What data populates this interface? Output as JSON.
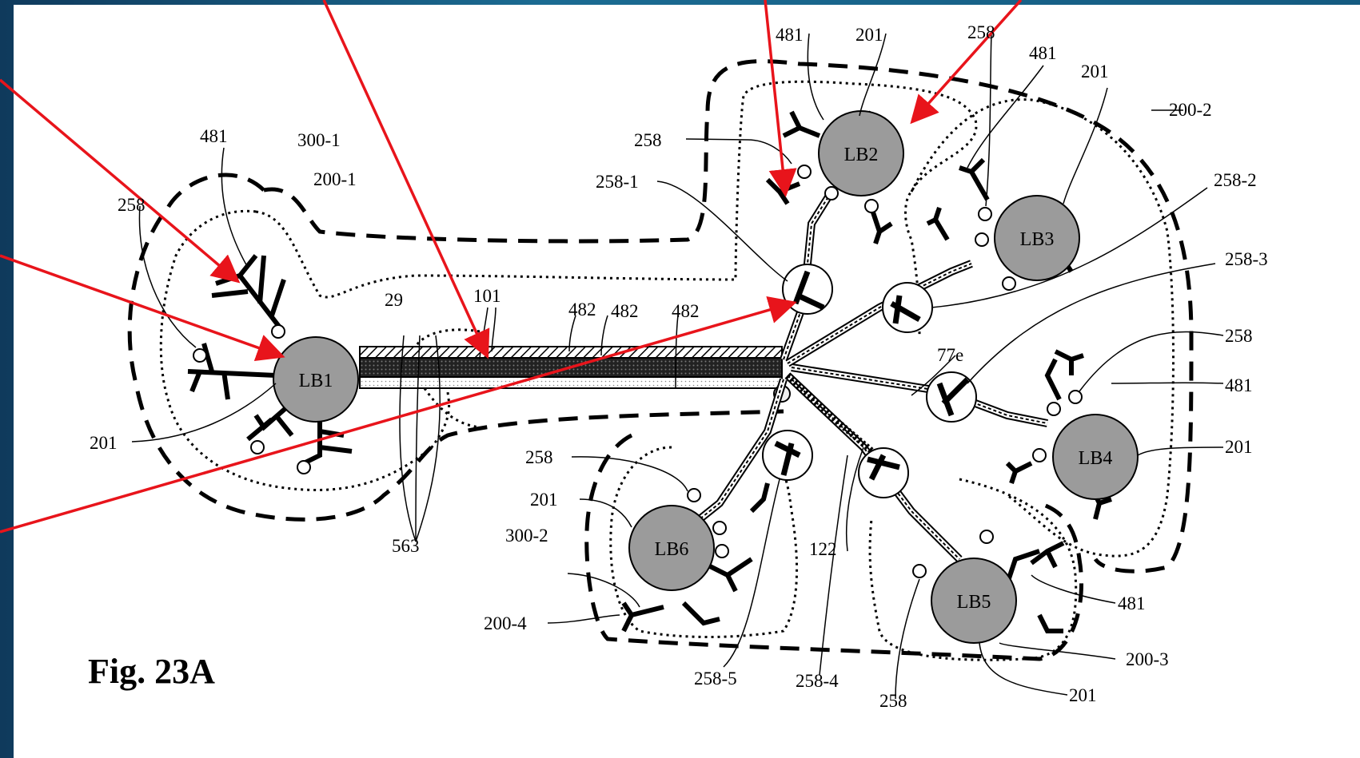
{
  "figure": {
    "caption": "Fig. 23A"
  },
  "nodes": [
    {
      "id": "LB1",
      "label": "LB1"
    },
    {
      "id": "LB2",
      "label": "LB2"
    },
    {
      "id": "LB3",
      "label": "LB3"
    },
    {
      "id": "LB4",
      "label": "LB4"
    },
    {
      "id": "LB5",
      "label": "LB5"
    },
    {
      "id": "LB6",
      "label": "LB6"
    }
  ],
  "labels": {
    "l481": "481",
    "l258": "258",
    "l201": "201",
    "l300_1": "300-1",
    "l300_2": "300-2",
    "l200_1": "200-1",
    "l200_2": "200-2",
    "l200_3": "200-3",
    "l200_4": "200-4",
    "l258_1": "258-1",
    "l258_2": "258-2",
    "l258_3": "258-3",
    "l258_4": "258-4",
    "l258_5": "258-5",
    "l29": "29",
    "l101": "101",
    "l482": "482",
    "l563": "563",
    "l77e": "77e",
    "l122": "122"
  },
  "colors": {
    "annotation_arrow": "#e8141b",
    "node_fill": "#9b9b9b",
    "background": "#1b6b92"
  }
}
